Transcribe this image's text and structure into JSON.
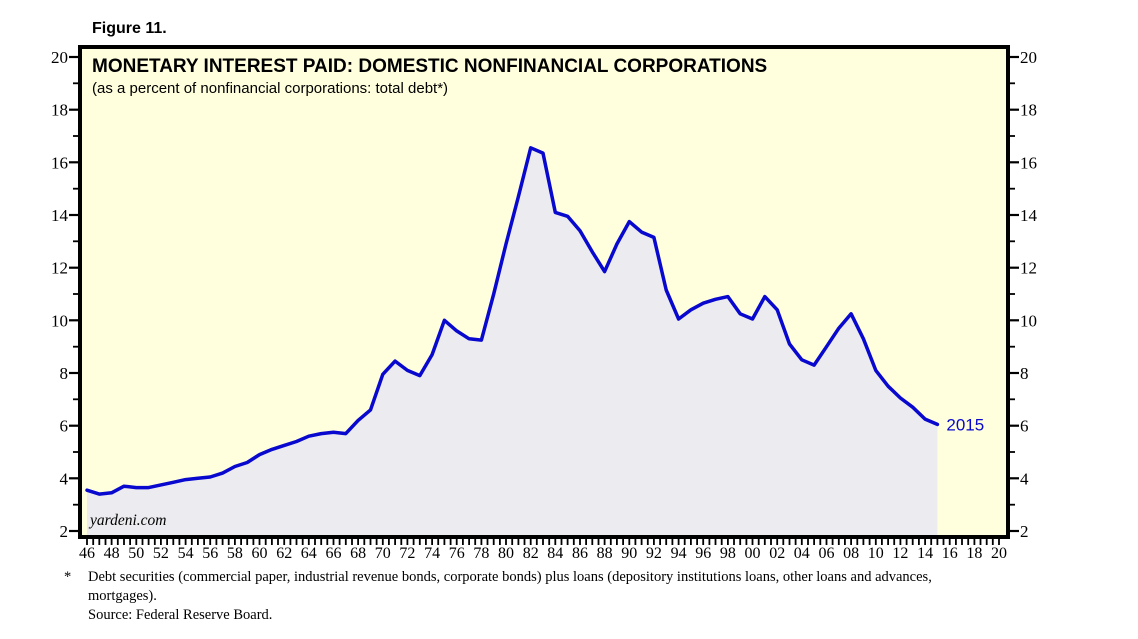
{
  "figure": {
    "label": "Figure 11."
  },
  "chart": {
    "watermark": "yardeni.com",
    "colors": {
      "plot_bg": "#FFFFDE",
      "area_fill": "#EBEBF0",
      "line": "#0808CE",
      "frame": "#000000",
      "label_blue": "#0808CE"
    }
  },
  "chart_data": {
    "type": "area",
    "title": "MONETARY INTEREST PAID: DOMESTIC NONFINANCIAL CORPORATIONS",
    "subtitle": "(as a percent of nonfinancial corporations: total debt*)",
    "last_point_label": "2015",
    "xlim": [
      1946,
      2020
    ],
    "ylim": [
      2,
      20
    ],
    "y_tick_step": 2,
    "x_tick_labels": [
      "46",
      "48",
      "50",
      "52",
      "54",
      "56",
      "58",
      "60",
      "62",
      "64",
      "66",
      "68",
      "70",
      "72",
      "74",
      "76",
      "78",
      "80",
      "82",
      "84",
      "86",
      "88",
      "90",
      "92",
      "94",
      "96",
      "98",
      "00",
      "02",
      "04",
      "06",
      "08",
      "10",
      "12",
      "14",
      "16",
      "18",
      "20"
    ],
    "y_tick_labels": [
      "2",
      "4",
      "6",
      "8",
      "10",
      "12",
      "14",
      "16",
      "18",
      "20"
    ],
    "years": [
      1946,
      1947,
      1948,
      1949,
      1950,
      1951,
      1952,
      1953,
      1954,
      1955,
      1956,
      1957,
      1958,
      1959,
      1960,
      1961,
      1962,
      1963,
      1964,
      1965,
      1966,
      1967,
      1968,
      1969,
      1970,
      1971,
      1972,
      1973,
      1974,
      1975,
      1976,
      1977,
      1978,
      1979,
      1980,
      1981,
      1982,
      1983,
      1984,
      1985,
      1986,
      1987,
      1988,
      1989,
      1990,
      1991,
      1992,
      1993,
      1994,
      1995,
      1996,
      1997,
      1998,
      1999,
      2000,
      2001,
      2002,
      2003,
      2004,
      2005,
      2006,
      2007,
      2008,
      2009,
      2010,
      2011,
      2012,
      2013,
      2014,
      2015
    ],
    "values": [
      3.55,
      3.4,
      3.45,
      3.7,
      3.65,
      3.65,
      3.75,
      3.85,
      3.95,
      4.0,
      4.05,
      4.2,
      4.45,
      4.6,
      4.9,
      5.1,
      5.25,
      5.4,
      5.6,
      5.7,
      5.75,
      5.7,
      6.2,
      6.6,
      7.95,
      8.45,
      8.1,
      7.9,
      8.7,
      10.0,
      9.6,
      9.3,
      9.25,
      11.0,
      12.9,
      14.7,
      16.55,
      16.35,
      14.1,
      13.95,
      13.4,
      12.6,
      11.85,
      12.9,
      13.75,
      13.35,
      13.15,
      11.15,
      10.05,
      10.4,
      10.65,
      10.8,
      10.9,
      10.25,
      10.05,
      10.9,
      10.4,
      9.1,
      8.5,
      8.3,
      9.0,
      9.7,
      10.25,
      9.3,
      8.1,
      7.5,
      7.05,
      6.7,
      6.25,
      6.05
    ]
  },
  "footnote": {
    "marker": "*",
    "line1": "Debt securities (commercial paper, industrial revenue bonds, corporate bonds) plus loans (depository institutions loans, other loans and advances,",
    "line2": "mortgages).",
    "source": "Source: Federal Reserve Board."
  }
}
